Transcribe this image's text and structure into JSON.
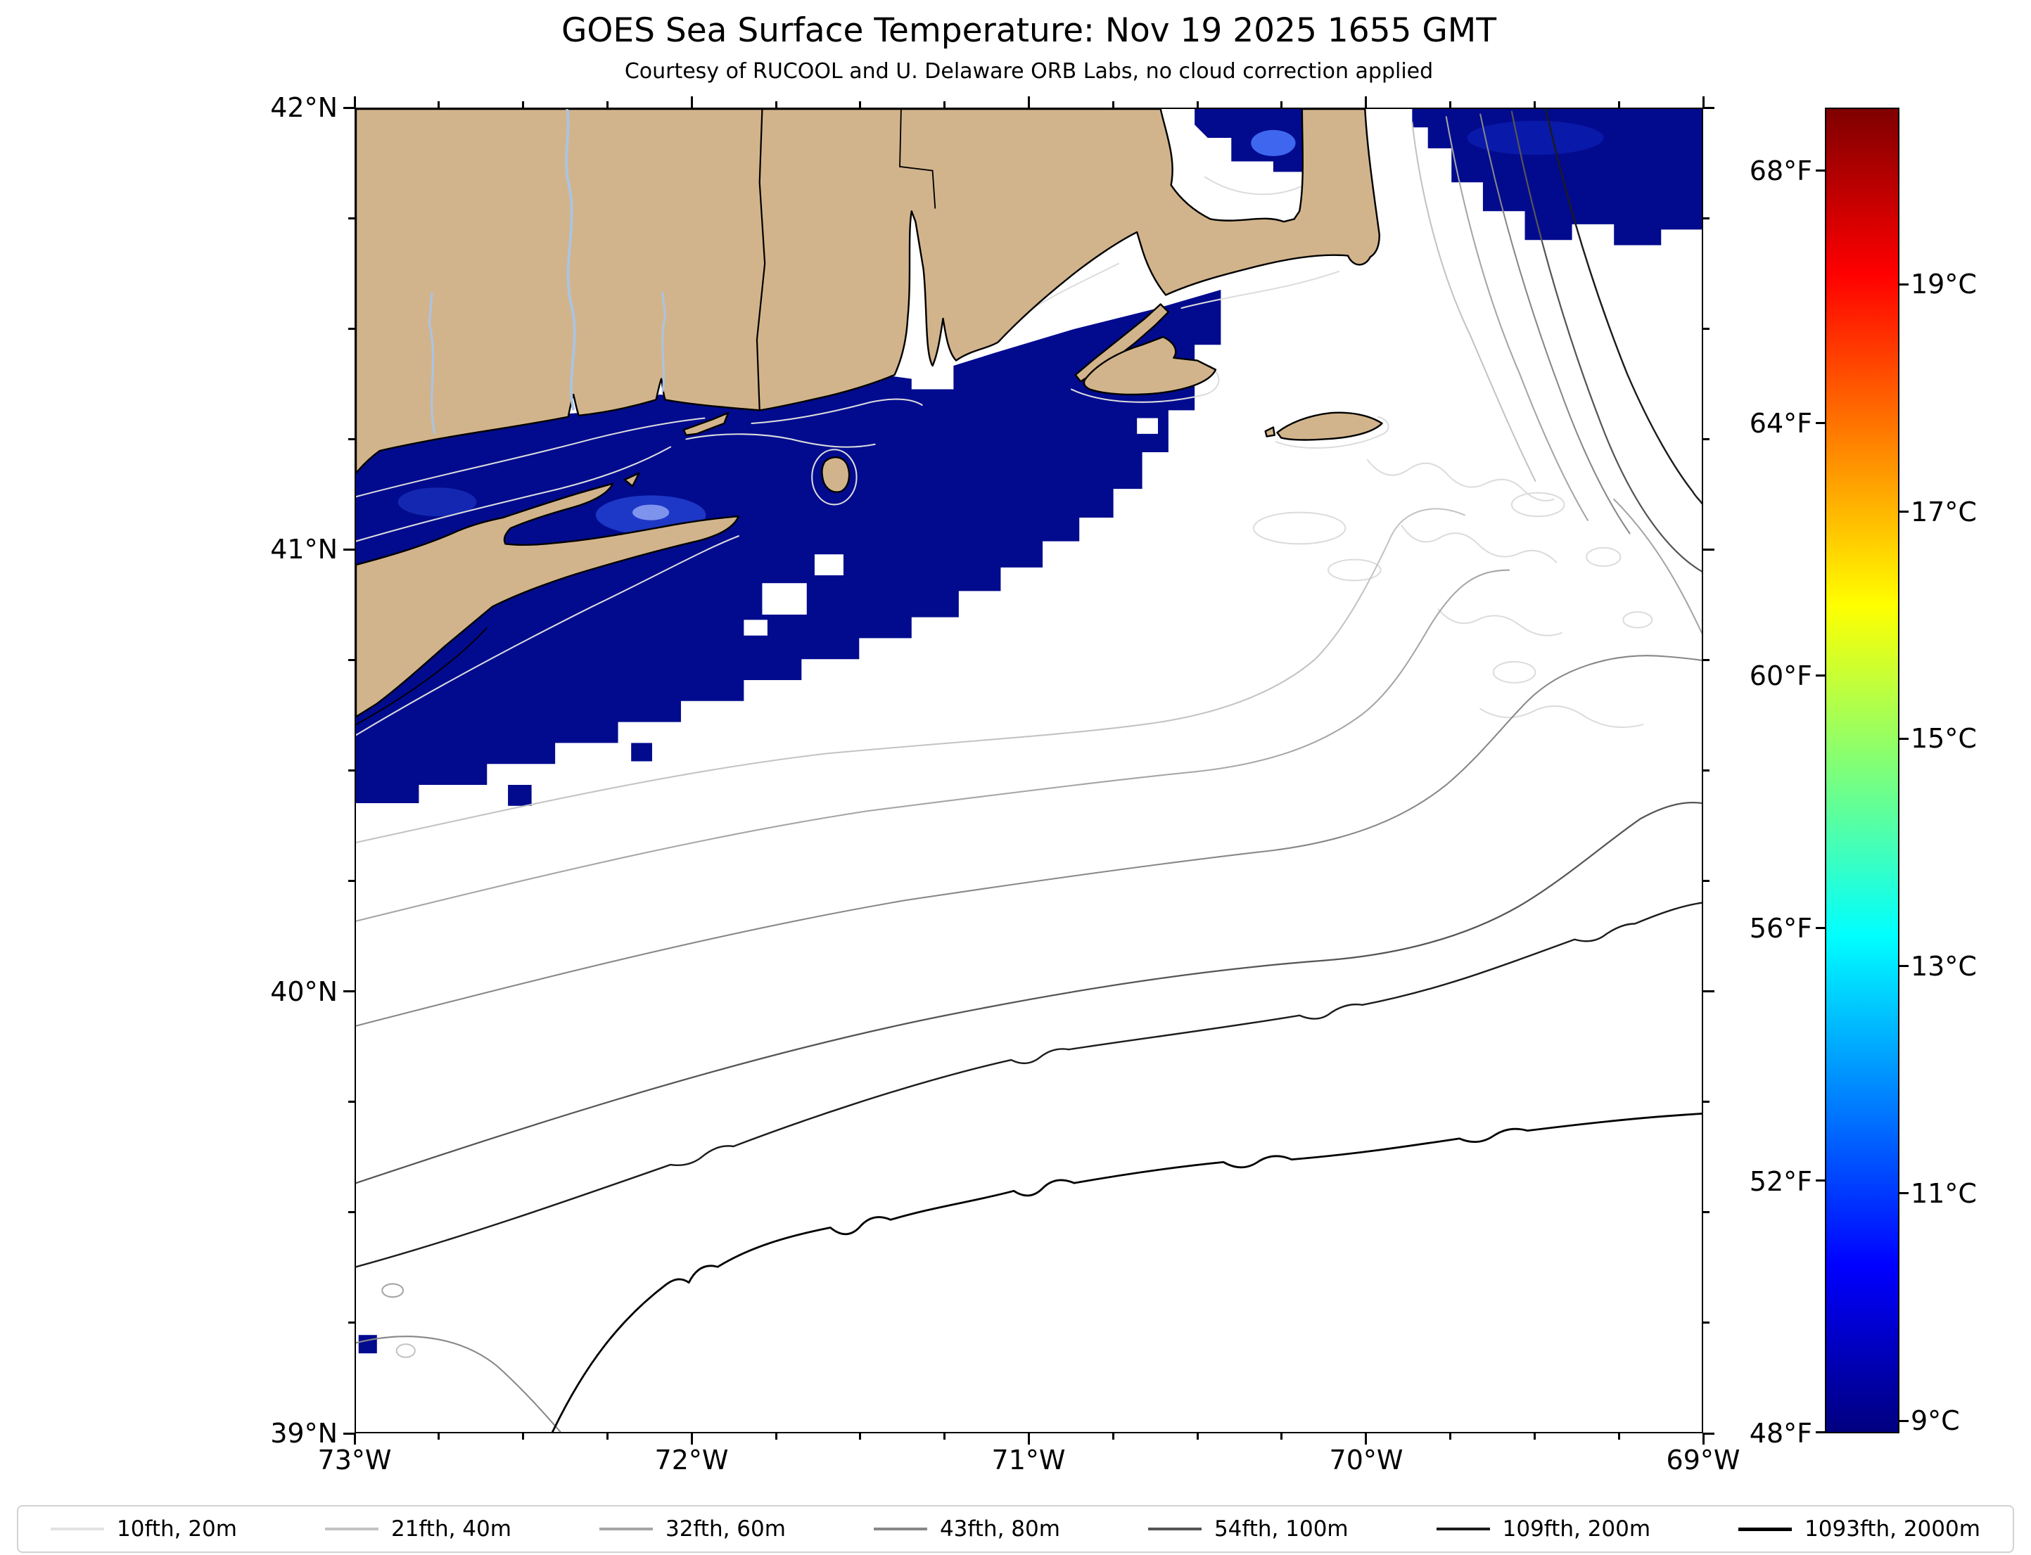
{
  "figure": {
    "title": "GOES Sea Surface Temperature: Nov 19 2025 1655 GMT",
    "subtitle": "Courtesy of RUCOOL and U. Delaware ORB Labs, no cloud correction applied"
  },
  "axes": {
    "x_tick_labels": [
      "73°W",
      "72°W",
      "71°W",
      "70°W",
      "69°W"
    ],
    "y_tick_labels": [
      "42°N",
      "41°N",
      "40°N",
      "39°N"
    ],
    "x_range_deg_west": [
      73,
      69
    ],
    "y_range_deg_north": [
      39,
      42
    ]
  },
  "colorbar": {
    "colormap": "jet",
    "range_f": [
      48,
      69
    ],
    "f_tick_labels": [
      "68°F",
      "64°F",
      "60°F",
      "56°F",
      "52°F",
      "48°F"
    ],
    "f_tick_values": [
      68,
      64,
      60,
      56,
      52,
      48
    ],
    "c_tick_labels": [
      "19°C",
      "17°C",
      "15°C",
      "13°C",
      "11°C",
      "9°C"
    ],
    "c_tick_values": [
      19,
      17,
      15,
      13,
      11,
      9
    ]
  },
  "legend": {
    "entries": [
      {
        "label": "10fth, 20m",
        "color": "#e2e2e2"
      },
      {
        "label": "21fth, 40m",
        "color": "#c3c3c3"
      },
      {
        "label": "32fth, 60m",
        "color": "#a5a5a5"
      },
      {
        "label": "43fth, 80m",
        "color": "#878787"
      },
      {
        "label": "54fth, 100m",
        "color": "#555555"
      },
      {
        "label": "109fth, 200m",
        "color": "#1c1c1c"
      },
      {
        "label": "1093fth, 2000m",
        "color": "#000000"
      }
    ]
  },
  "map_colors": {
    "land": "#d2b48c",
    "sst_cold_water": "#020b8e",
    "no_data_ocean": "#ffffff",
    "river": "#aac4e6"
  },
  "chart_data": {
    "type": "heatmap",
    "title": "GOES Sea Surface Temperature: Nov 19 2025 1655 GMT",
    "subtitle": "Courtesy of RUCOOL and U. Delaware ORB Labs, no cloud correction applied",
    "x_axis": {
      "unit": "°W",
      "ticks": [
        73,
        72,
        71,
        70,
        69
      ],
      "range": [
        73,
        69
      ]
    },
    "y_axis": {
      "unit": "°N",
      "ticks": [
        39,
        40,
        41,
        42
      ],
      "range": [
        39,
        42
      ]
    },
    "colorbar": {
      "colormap": "jet",
      "fahrenheit_ticks": [
        48,
        52,
        56,
        60,
        64,
        68
      ],
      "celsius_ticks": [
        9,
        11,
        13,
        15,
        17,
        19
      ],
      "range_f": [
        48,
        69
      ]
    },
    "depth_contours": [
      {
        "label": "10fth, 20m",
        "fathoms": 10,
        "meters": 20
      },
      {
        "label": "21fth, 40m",
        "fathoms": 21,
        "meters": 40
      },
      {
        "label": "32fth, 60m",
        "fathoms": 32,
        "meters": 60
      },
      {
        "label": "43fth, 80m",
        "fathoms": 43,
        "meters": 80
      },
      {
        "label": "54fth, 100m",
        "fathoms": 54,
        "meters": 100
      },
      {
        "label": "109fth, 200m",
        "fathoms": 109,
        "meters": 200
      },
      {
        "label": "1093fth, 2000m",
        "fathoms": 1093,
        "meters": 2000
      }
    ],
    "observed_sst": "Dark blue (~9°C / 48°F) water along coast: Long Island Sound, Block Island Sound, south shore of Long Island, Cape Cod Bay and northeast corner east of Cape Cod; remaining ocean white (no data)"
  }
}
